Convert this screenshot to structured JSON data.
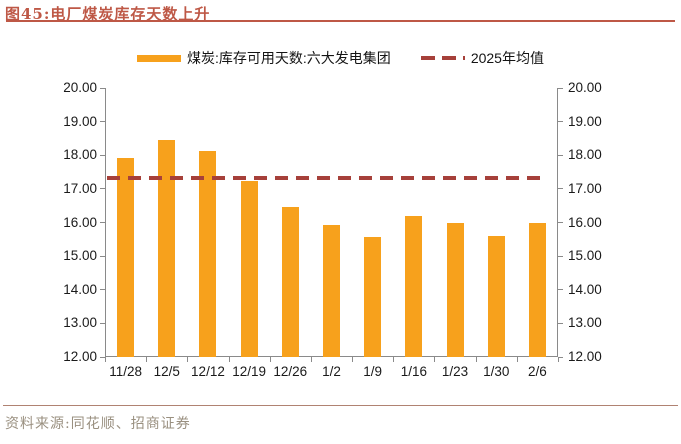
{
  "header": {
    "title": "图45:电厂煤炭库存天数上升",
    "accent_color": "#be5846"
  },
  "legend": [
    {
      "label": "煤炭:库存可用天数:六大发电集团",
      "swatch": "bar",
      "color": "#f7a11c"
    },
    {
      "label": "2025年均值",
      "swatch": "dash",
      "color": "#a6403a"
    }
  ],
  "chart_data": {
    "type": "bar",
    "title": "电厂煤炭库存天数上升",
    "categories": [
      "11/28",
      "12/5",
      "12/12",
      "12/19",
      "12/26",
      "1/2",
      "1/9",
      "1/16",
      "1/23",
      "1/30",
      "2/6"
    ],
    "series": [
      {
        "name": "煤炭:库存可用天数:六大发电集团",
        "type": "bar",
        "color": "#f7a11c",
        "values": [
          17.92,
          18.45,
          18.12,
          17.22,
          16.45,
          15.92,
          15.58,
          16.19,
          16.0,
          15.59,
          16.0
        ]
      },
      {
        "name": "2025年均值",
        "type": "dashed-line",
        "color": "#a6403a",
        "value": 17.32
      }
    ],
    "ylim": [
      12,
      20
    ],
    "ytick_step": 1,
    "ytick_decimals": 2,
    "dual_y_axis": true,
    "grid": false,
    "legend_position": "top",
    "axis_color": "#8a8a8a"
  },
  "footer": {
    "source": "资料来源:同花顺、招商证券",
    "source_color": "#9a9080",
    "rule_color": "#b08272"
  }
}
